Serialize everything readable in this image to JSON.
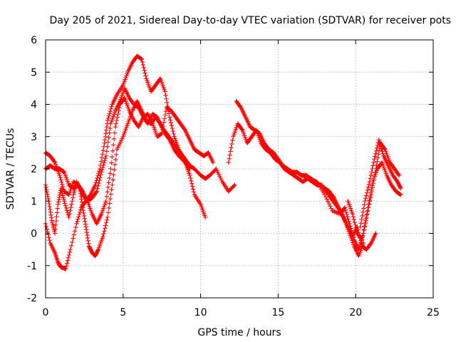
{
  "chart_data": {
    "type": "scatter",
    "title": "Day 205 of 2021, Sidereal Day-to-day VTEC variation (SDTVAR) for receiver pots",
    "xlabel": "GPS time / hours",
    "ylabel": "SDTVAR / TECUs",
    "xlim": [
      0,
      25
    ],
    "ylim": [
      -2,
      6
    ],
    "xticks": [
      "0",
      "5",
      "10",
      "15",
      "20",
      "25"
    ],
    "yticks": [
      "-2",
      "-1",
      "0",
      "1",
      "2",
      "3",
      "4",
      "5",
      "6"
    ],
    "grid": true,
    "marker": "plus",
    "color": "#ff0000",
    "series": [
      {
        "name": "trace-1",
        "x": [
          0.0,
          0.3,
          0.6,
          0.8,
          1.0,
          1.3,
          1.6,
          2.0,
          2.3,
          2.6,
          2.9,
          3.2,
          3.5,
          3.8,
          4.0,
          4.3,
          4.6,
          5.0,
          5.3,
          5.6,
          5.9,
          6.2,
          6.5,
          6.8,
          7.1,
          7.4,
          7.7,
          8.0,
          8.3,
          8.6,
          9.0,
          9.3,
          9.6,
          10.0,
          10.3
        ],
        "y": [
          0.3,
          -0.3,
          -0.6,
          -0.9,
          -1.05,
          -1.1,
          -0.5,
          0.3,
          0.8,
          1.0,
          1.2,
          1.5,
          2.0,
          2.8,
          3.5,
          4.0,
          4.3,
          4.6,
          5.0,
          5.3,
          5.5,
          5.4,
          4.8,
          4.4,
          4.6,
          4.8,
          4.4,
          3.6,
          3.0,
          2.6,
          2.2,
          1.8,
          1.2,
          0.9,
          0.5
        ]
      },
      {
        "name": "trace-2",
        "x": [
          0.0,
          0.2,
          0.4,
          0.6,
          0.8,
          1.0,
          1.2,
          1.5,
          1.8,
          2.0,
          2.2,
          2.4,
          2.6,
          2.8,
          3.0,
          3.2,
          3.4,
          3.7,
          4.0,
          4.3,
          4.6,
          5.0,
          5.3,
          5.6,
          5.9,
          6.2,
          6.5,
          6.8,
          7.1,
          7.4,
          7.7,
          8.0,
          8.3,
          8.6,
          9.0,
          9.3
        ],
        "y": [
          1.5,
          1.0,
          0.4,
          0.0,
          0.9,
          1.4,
          1.0,
          0.5,
          1.2,
          1.6,
          1.4,
          0.8,
          0.2,
          -0.4,
          -0.6,
          -0.7,
          -0.5,
          -0.1,
          0.5,
          1.5,
          2.6,
          3.0,
          3.4,
          3.8,
          4.1,
          3.8,
          3.5,
          3.4,
          3.6,
          3.4,
          3.1,
          2.9,
          2.6,
          2.4,
          2.2,
          2.0
        ]
      },
      {
        "name": "trace-3",
        "x": [
          0.0,
          0.3,
          0.6,
          0.9,
          1.2,
          1.5,
          1.8,
          2.1,
          2.4,
          2.7,
          3.0,
          3.3,
          3.6,
          3.9,
          4.2,
          4.5,
          4.8,
          5.1,
          5.4,
          5.7,
          6.0,
          6.3,
          6.6,
          6.9,
          7.2,
          7.5,
          7.8,
          8.1,
          8.4,
          8.7,
          9.0,
          9.3,
          9.6,
          10.0,
          10.3,
          10.6,
          11.0,
          11.4,
          11.8,
          12.2
        ],
        "y": [
          2.0,
          2.1,
          2.0,
          2.0,
          1.9,
          1.5,
          1.4,
          1.5,
          1.2,
          1.0,
          1.1,
          1.3,
          1.9,
          2.4,
          3.4,
          3.8,
          4.1,
          4.5,
          4.2,
          4.0,
          3.9,
          3.6,
          3.4,
          3.7,
          3.6,
          3.3,
          3.1,
          2.9,
          2.7,
          2.5,
          2.3,
          2.1,
          2.0,
          1.8,
          1.7,
          1.8,
          2.0,
          1.6,
          1.3,
          1.5
        ]
      },
      {
        "name": "trace-4",
        "x": [
          0.0,
          0.3,
          0.6,
          0.9,
          1.2,
          1.5,
          1.8,
          2.1,
          2.4,
          2.7,
          3.0,
          3.3,
          3.6,
          3.9,
          4.2,
          4.5,
          4.8,
          5.1,
          5.4,
          5.7,
          6.0,
          6.3,
          6.6,
          6.9,
          7.2,
          7.5,
          7.8,
          8.1,
          8.4,
          8.7,
          9.0,
          9.3,
          9.6,
          9.9,
          10.2,
          10.5,
          10.8
        ],
        "y": [
          2.5,
          2.4,
          2.2,
          1.8,
          1.3,
          1.2,
          1.6,
          1.5,
          1.3,
          1.0,
          0.6,
          0.3,
          0.6,
          1.0,
          2.0,
          3.3,
          4.0,
          4.2,
          3.8,
          3.5,
          3.3,
          3.6,
          3.7,
          3.4,
          3.0,
          3.1,
          3.9,
          3.8,
          3.6,
          3.4,
          3.2,
          2.9,
          2.6,
          2.5,
          2.4,
          2.5,
          2.2
        ]
      },
      {
        "name": "trace-5",
        "x": [
          11.8,
          12.1,
          12.4,
          12.7,
          13.0,
          13.3,
          13.6,
          13.9,
          14.2,
          14.5,
          14.8,
          15.1,
          15.4,
          15.7,
          16.0,
          16.3,
          16.6,
          16.9,
          17.2,
          17.5,
          17.8,
          18.1,
          18.4,
          18.7,
          19.0,
          19.3,
          19.6,
          19.9,
          20.2,
          20.5
        ],
        "y": [
          2.2,
          3.0,
          3.4,
          3.2,
          2.8,
          3.0,
          3.2,
          2.8,
          2.6,
          2.5,
          2.3,
          2.2,
          2.0,
          1.9,
          1.8,
          1.7,
          1.6,
          1.7,
          1.6,
          1.5,
          1.5,
          1.3,
          1.1,
          0.9,
          0.7,
          0.4,
          0.0,
          -0.4,
          -0.7,
          -0.3
        ]
      },
      {
        "name": "trace-6",
        "x": [
          12.3,
          12.6,
          12.9,
          13.2,
          13.5,
          13.8,
          14.1,
          14.4,
          14.7,
          15.0,
          15.3,
          15.6,
          15.9,
          16.2,
          16.5,
          16.8,
          17.1,
          17.4,
          17.7,
          18.0,
          18.3,
          18.6,
          18.9,
          19.2,
          19.5,
          19.8,
          20.1,
          20.4,
          20.7,
          21.0,
          21.3
        ],
        "y": [
          4.1,
          3.9,
          3.6,
          3.3,
          3.2,
          3.1,
          2.8,
          2.6,
          2.5,
          2.3,
          2.1,
          2.0,
          1.9,
          1.9,
          1.8,
          1.8,
          1.7,
          1.6,
          1.5,
          1.4,
          1.3,
          1.1,
          0.8,
          0.5,
          0.2,
          -0.1,
          0.2,
          -0.4,
          -0.5,
          -0.3,
          0.0
        ]
      },
      {
        "name": "trace-7",
        "x": [
          16.5,
          17.0,
          17.5,
          18.0,
          18.5,
          19.0,
          19.3,
          19.6,
          19.9,
          20.2,
          20.5,
          20.8,
          21.1,
          21.4,
          21.7,
          22.0,
          22.3,
          22.6,
          22.9
        ],
        "y": [
          1.8,
          1.7,
          1.6,
          1.2,
          0.7,
          0.6,
          0.8,
          0.3,
          -0.2,
          -0.5,
          0.0,
          0.8,
          1.6,
          2.0,
          2.2,
          1.8,
          1.5,
          1.3,
          1.2
        ]
      },
      {
        "name": "trace-8",
        "x": [
          19.5,
          19.8,
          20.1,
          20.4,
          20.7,
          21.0,
          21.3,
          21.6,
          21.9,
          22.2,
          22.5,
          22.8
        ],
        "y": [
          1.0,
          0.6,
          0.0,
          -0.2,
          0.5,
          1.2,
          2.0,
          2.8,
          2.6,
          2.2,
          2.0,
          1.8
        ]
      },
      {
        "name": "trace-9",
        "x": [
          20.3,
          20.6,
          20.9,
          21.2,
          21.5,
          21.8,
          22.1,
          22.4,
          22.7,
          22.9
        ],
        "y": [
          0.2,
          1.0,
          1.6,
          2.3,
          2.9,
          2.4,
          2.1,
          1.8,
          1.6,
          1.4
        ]
      }
    ]
  }
}
